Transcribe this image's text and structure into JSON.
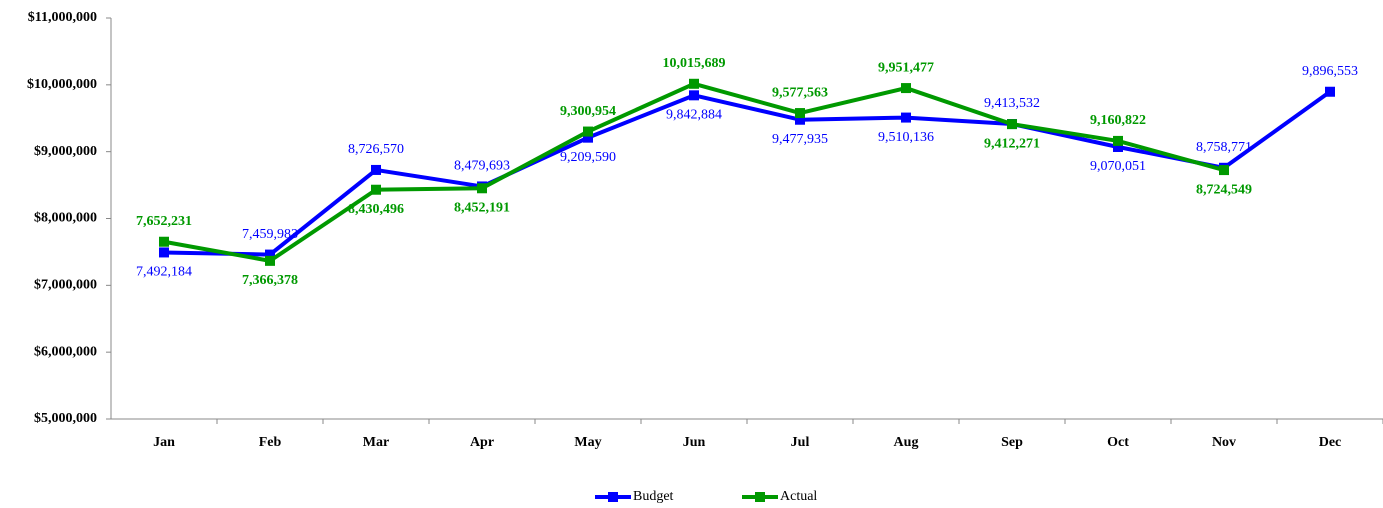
{
  "chart_data": {
    "type": "line",
    "categories": [
      "Jan",
      "Feb",
      "Mar",
      "Apr",
      "May",
      "Jun",
      "Jul",
      "Aug",
      "Sep",
      "Oct",
      "Nov",
      "Dec"
    ],
    "series": [
      {
        "name": "Budget",
        "color": "#0000ff",
        "values": [
          7492184,
          7459983,
          8726570,
          8479693,
          9209590,
          9842884,
          9477935,
          9510136,
          9413532,
          9070051,
          8758771,
          9896553
        ],
        "value_labels": [
          "7,492,184",
          "7,459,983",
          "8,726,570",
          "8,479,693",
          "9,209,590",
          "9,842,884",
          "9,477,935",
          "9,510,136",
          "9,413,532",
          "9,070,051",
          "8,758,771",
          "9,896,553"
        ]
      },
      {
        "name": "Actual",
        "color": "#009900",
        "values": [
          7652231,
          7366378,
          8430496,
          8452191,
          9300954,
          10015689,
          9577563,
          9951477,
          9412271,
          9160822,
          8724549,
          null
        ],
        "value_labels": [
          "7,652,231",
          "7,366,378",
          "8,430,496",
          "8,452,191",
          "9,300,954",
          "10,015,689",
          "9,577,563",
          "9,951,477",
          "9,412,271",
          "9,160,822",
          "8,724,549",
          null
        ]
      }
    ],
    "ylim": [
      5000000,
      11000000
    ],
    "yticks": [
      {
        "value": 5000000,
        "label": "$5,000,000"
      },
      {
        "value": 6000000,
        "label": "$6,000,000"
      },
      {
        "value": 7000000,
        "label": "$7,000,000"
      },
      {
        "value": 8000000,
        "label": "$8,000,000"
      },
      {
        "value": 9000000,
        "label": "$9,000,000"
      },
      {
        "value": 10000000,
        "label": "$10,000,000"
      },
      {
        "value": 11000000,
        "label": "$11,000,000"
      }
    ],
    "grid": false,
    "legend": "bottom"
  }
}
